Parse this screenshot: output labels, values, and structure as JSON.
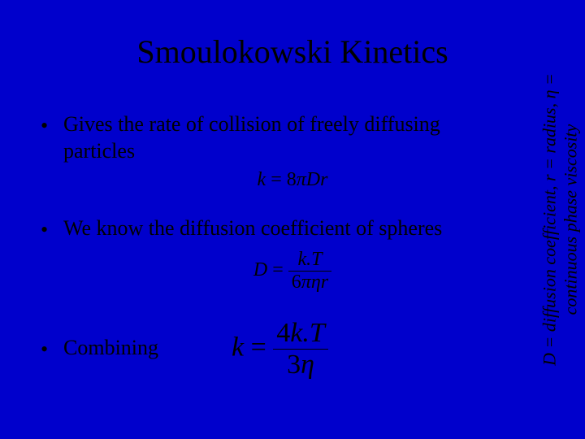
{
  "colors": {
    "background": "#0000cc",
    "text": "#000000"
  },
  "fonts": {
    "title_family": "Times New Roman",
    "body_family": "Book Antiqua",
    "title_size_pt": 40,
    "body_size_pt": 26,
    "eq_small_pt": 24,
    "eq_big_pt": 34
  },
  "title": "Smoulokowski Kinetics",
  "bullets": [
    {
      "text": "Gives the rate of collision of freely diffusing particles"
    },
    {
      "text": "We know the diffusion coefficient of spheres"
    },
    {
      "text": "Combining"
    }
  ],
  "equations": {
    "eq1": {
      "lhs": "k",
      "eq": "=",
      "rhs_coeff": "8",
      "rhs_sym1": "π",
      "rhs_sym2": "Dr"
    },
    "eq2": {
      "lhs": "D",
      "eq": "=",
      "num": "k.T",
      "den_coeff": "6",
      "den_sym1": "π",
      "den_sym2": "η",
      "den_sym3": "r"
    },
    "eq3": {
      "lhs": "k",
      "eq": "=",
      "num_coeff": "4",
      "num_rest": "k.T",
      "den_coeff": "3",
      "den_sym": "η"
    }
  },
  "side_label": {
    "line1": "D = diffusion coefficient, r = radius, η =",
    "line2": "continuous phase viscosity"
  }
}
